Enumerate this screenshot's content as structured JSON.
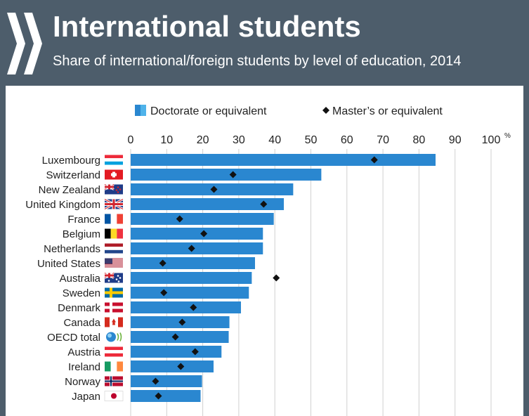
{
  "header": {
    "title": "International students",
    "subtitle": "Share of international/foreign students by level of education, 2014"
  },
  "colors": {
    "background": "#4d5d6b",
    "bar": "#2a87d0",
    "bar_light": "#4fb3ea",
    "marker": "#111111",
    "grid": "#d0d0d0"
  },
  "chart_data": {
    "type": "bar",
    "orientation": "horizontal",
    "unit": "%",
    "xlim": [
      0,
      100
    ],
    "xticks": [
      0,
      10,
      20,
      30,
      40,
      50,
      60,
      70,
      80,
      90,
      100
    ],
    "grid": true,
    "legend_position": "top",
    "categories": [
      "Luxembourg",
      "Switzerland",
      "New Zealand",
      "United Kingdom",
      "France",
      "Belgium",
      "Netherlands",
      "United States",
      "Australia",
      "Sweden",
      "Denmark",
      "Canada",
      "OECD total",
      "Austria",
      "Ireland",
      "Norway",
      "Japan"
    ],
    "flags": [
      "luxembourg-flag-icon",
      "switzerland-flag-icon",
      "new-zealand-flag-icon",
      "united-kingdom-flag-icon",
      "france-flag-icon",
      "belgium-flag-icon",
      "netherlands-flag-icon",
      "united-states-flag-icon",
      "australia-flag-icon",
      "sweden-flag-icon",
      "denmark-flag-icon",
      "canada-flag-icon",
      "oecd-logo-icon",
      "austria-flag-icon",
      "ireland-flag-icon",
      "norway-flag-icon",
      "japan-flag-icon"
    ],
    "series": [
      {
        "name": "Doctorate or equivalent",
        "kind": "bar",
        "values": [
          84.6,
          52.9,
          45.1,
          42.5,
          39.7,
          36.7,
          36.7,
          34.5,
          33.6,
          32.8,
          30.6,
          27.4,
          27.2,
          25.2,
          23.0,
          19.8,
          19.4
        ]
      },
      {
        "name": "Master’s or equivalent",
        "kind": "marker",
        "values": [
          67.6,
          28.4,
          23.1,
          36.9,
          13.6,
          20.3,
          16.9,
          8.9,
          40.4,
          9.2,
          17.4,
          14.3,
          12.4,
          17.9,
          13.9,
          6.9,
          7.7
        ]
      }
    ]
  }
}
